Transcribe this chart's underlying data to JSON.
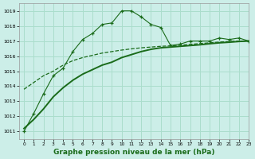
{
  "title": "Graphe pression niveau de la mer (hPa)",
  "bg_color": "#cceee8",
  "grid_color": "#aaddcc",
  "line_color": "#1a6b1a",
  "xlim": [
    -0.5,
    23
  ],
  "ylim": [
    1010.5,
    1019.5
  ],
  "yticks": [
    1011,
    1012,
    1013,
    1014,
    1015,
    1016,
    1017,
    1018,
    1019
  ],
  "xticks": [
    0,
    1,
    2,
    3,
    4,
    5,
    6,
    7,
    8,
    9,
    10,
    11,
    12,
    13,
    14,
    15,
    16,
    17,
    18,
    19,
    20,
    21,
    22,
    23
  ],
  "s1_x": [
    0,
    1,
    2,
    3,
    4,
    5,
    6,
    7,
    8,
    9,
    10,
    11,
    12,
    13,
    14,
    15,
    16,
    17,
    18,
    19,
    20,
    21,
    22,
    23
  ],
  "s1_y": [
    1011.0,
    1012.2,
    1013.5,
    1014.7,
    1015.2,
    1016.3,
    1017.1,
    1017.5,
    1018.1,
    1018.2,
    1019.0,
    1019.0,
    1018.6,
    1018.1,
    1017.9,
    1016.7,
    1016.8,
    1017.0,
    1017.0,
    1017.0,
    1017.2,
    1017.1,
    1017.2,
    1017.0
  ],
  "s2_x": [
    0,
    1,
    2,
    3,
    4,
    5,
    6,
    7,
    8,
    9,
    10,
    11,
    12,
    13,
    14,
    15,
    16,
    17,
    18,
    19,
    20,
    21,
    22,
    23
  ],
  "s2_y": [
    1011.2,
    1011.8,
    1012.5,
    1013.3,
    1013.9,
    1014.4,
    1014.8,
    1015.1,
    1015.4,
    1015.6,
    1015.9,
    1016.1,
    1016.3,
    1016.45,
    1016.55,
    1016.6,
    1016.65,
    1016.7,
    1016.75,
    1016.82,
    1016.88,
    1016.92,
    1016.97,
    1017.0
  ],
  "s3_x": [
    0,
    2,
    3,
    4,
    5,
    6,
    7,
    8,
    9,
    10,
    11,
    12,
    13,
    14,
    15,
    16,
    17,
    18,
    19,
    20,
    21,
    22,
    23
  ],
  "s3_y": [
    1013.8,
    1014.7,
    1015.0,
    1015.4,
    1015.7,
    1015.9,
    1016.05,
    1016.2,
    1016.3,
    1016.4,
    1016.48,
    1016.55,
    1016.6,
    1016.65,
    1016.68,
    1016.72,
    1016.78,
    1016.83,
    1016.88,
    1016.93,
    1016.97,
    1017.0,
    1017.0
  ],
  "ylabel_fontsize": 5.0,
  "xlabel_fontsize": 5.0,
  "title_fontsize": 6.5
}
